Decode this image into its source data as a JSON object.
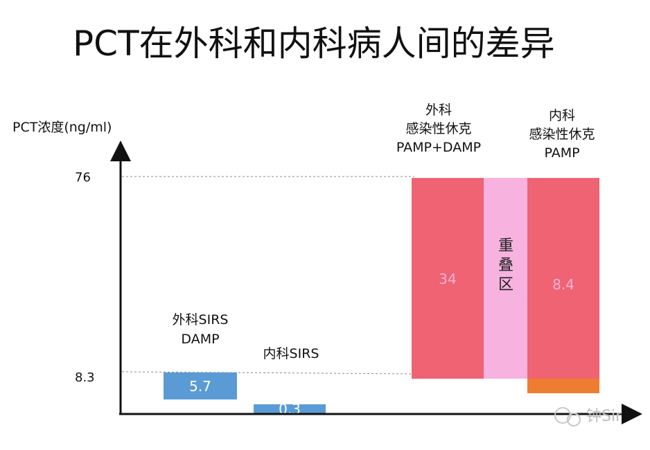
{
  "title": "PCT在外科和内科病人间的差异",
  "watermark": "钟Sir",
  "chart_data": {
    "type": "bar",
    "ylabel": "PCT浓度(ng/ml)",
    "yticks": [
      "76",
      "8.3"
    ],
    "bars": [
      {
        "label_lines": [
          "外科SIRS",
          "DAMP"
        ],
        "value": "5.7",
        "color": "#5b9bd5"
      },
      {
        "label_lines": [
          "内科SIRS"
        ],
        "value": "0.3",
        "color": "#5b9bd5"
      },
      {
        "label_lines": [
          "外科",
          "感染性休克",
          "PAMP+DAMP"
        ],
        "value": "34",
        "color": "#ef6372"
      },
      {
        "label_lines": [
          "内科",
          "感染性休克",
          "PAMP"
        ],
        "value": "8.4",
        "color": "#ef6372",
        "base_color": "#ee7d32"
      }
    ],
    "overlap": {
      "label_lines": [
        "重",
        "叠",
        "区"
      ],
      "color": "#f7b2e0"
    }
  }
}
